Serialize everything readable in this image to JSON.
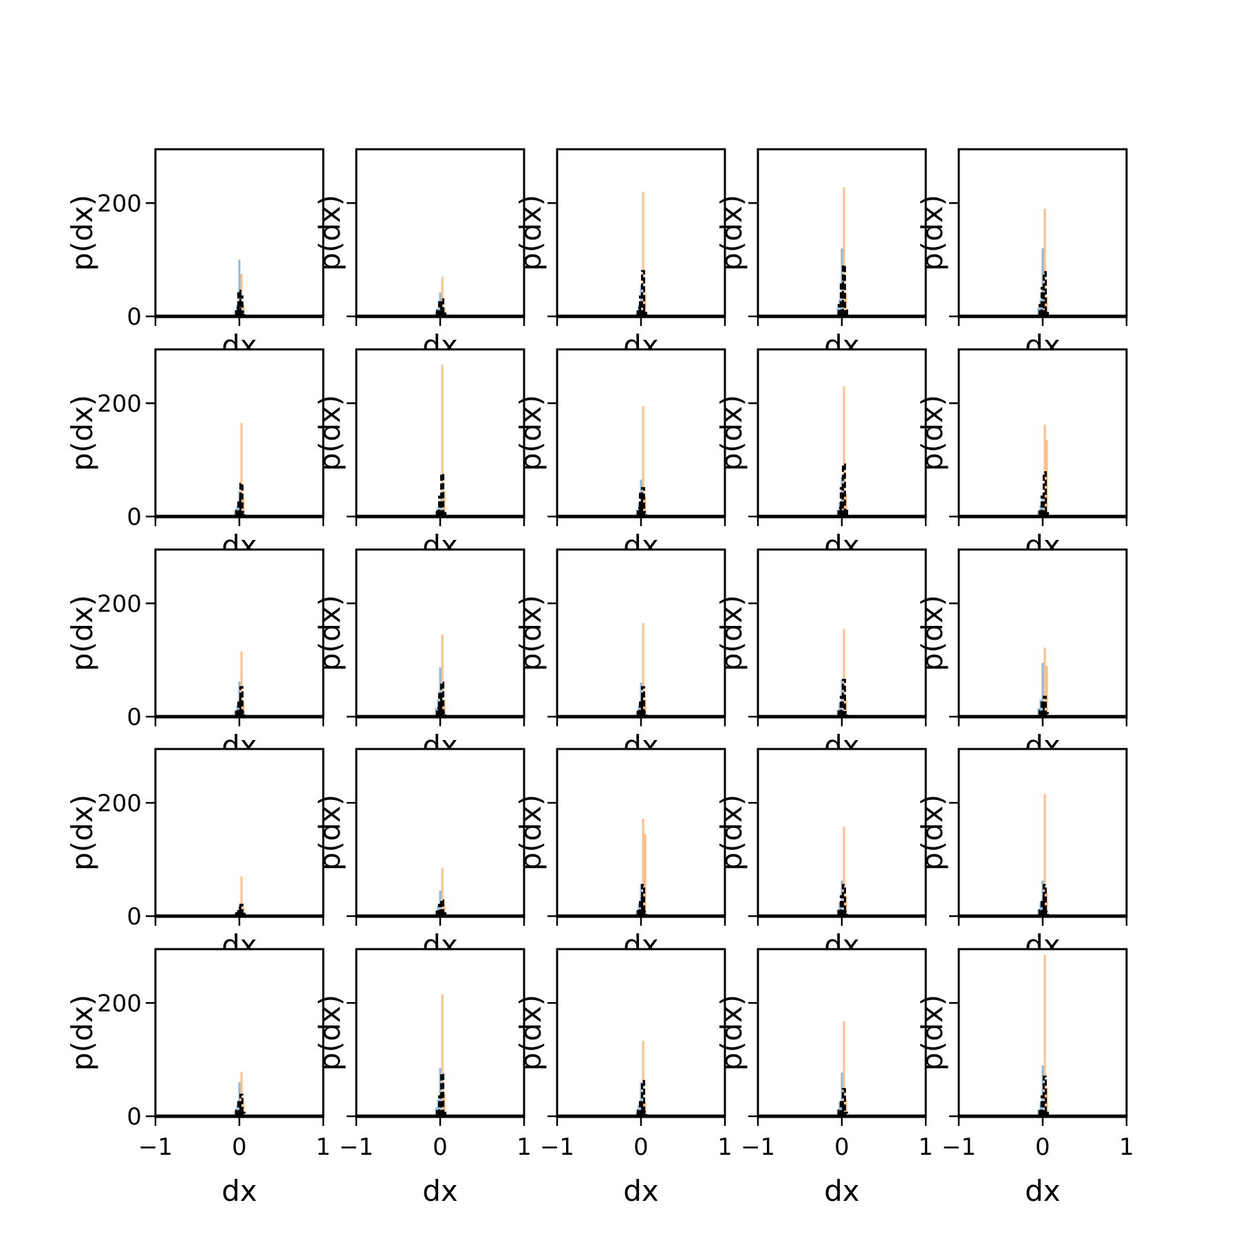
{
  "figure": {
    "background": "#ffffff",
    "rows": 5,
    "cols": 5
  },
  "colors": {
    "series_a": "#1f77b4",
    "series_b": "#ff7f0e",
    "series_c": "#000000",
    "axes": "#000000"
  },
  "chart_data": {
    "type": "bar",
    "title": "",
    "xlabel": "dx",
    "ylabel": "p(dx)",
    "xlim": [
      -1,
      1
    ],
    "ylim": [
      0,
      295
    ],
    "xticks": [
      -1,
      0,
      1
    ],
    "xtick_labels": [
      "−1",
      "0",
      "1"
    ],
    "yticks": [
      0,
      200
    ],
    "ytick_labels": [
      "0",
      "200"
    ],
    "grid": false,
    "legend": "none",
    "series_names": [
      "",
      "",
      ""
    ],
    "series_alpha": [
      0.5,
      0.5,
      1.0
    ],
    "bin_width": 0.025,
    "panels": [
      {
        "a": {
          "x": [
            -0.05,
            -0.025,
            0
          ],
          "y": [
            10,
            20,
            100
          ]
        },
        "b": {
          "x": [
            0.025,
            0.05
          ],
          "y": [
            75,
            20
          ]
        },
        "c": {
          "x": [
            -0.025,
            0,
            0.025,
            0.05
          ],
          "y": [
            15,
            45,
            35,
            8
          ]
        }
      },
      {
        "a": {
          "x": [
            -0.05,
            -0.025,
            0
          ],
          "y": [
            8,
            15,
            42
          ]
        },
        "b": {
          "x": [
            0.025,
            0.05
          ],
          "y": [
            70,
            15
          ]
        },
        "c": {
          "x": [
            -0.025,
            0,
            0.025,
            0.05
          ],
          "y": [
            10,
            25,
            30,
            5
          ]
        }
      },
      {
        "a": {
          "x": [
            -0.05,
            -0.025,
            0
          ],
          "y": [
            10,
            20,
            55
          ]
        },
        "b": {
          "x": [
            0.025,
            0.05
          ],
          "y": [
            220,
            40
          ]
        },
        "c": {
          "x": [
            -0.025,
            0,
            0.025,
            0.05
          ],
          "y": [
            15,
            35,
            80,
            10
          ]
        }
      },
      {
        "a": {
          "x": [
            -0.05,
            -0.025,
            0
          ],
          "y": [
            15,
            30,
            120
          ]
        },
        "b": {
          "x": [
            0.025,
            0.05
          ],
          "y": [
            228,
            40
          ]
        },
        "c": {
          "x": [
            -0.025,
            0,
            0.025,
            0.05
          ],
          "y": [
            20,
            60,
            90,
            12
          ]
        }
      },
      {
        "a": {
          "x": [
            -0.05,
            -0.025,
            0
          ],
          "y": [
            15,
            30,
            120
          ]
        },
        "b": {
          "x": [
            0.025,
            0.05
          ],
          "y": [
            190,
            35
          ]
        },
        "c": {
          "x": [
            -0.025,
            0,
            0.025,
            0.05
          ],
          "y": [
            20,
            50,
            78,
            10
          ]
        }
      },
      {
        "a": {
          "x": [
            -0.05,
            -0.025,
            0
          ],
          "y": [
            10,
            18,
            45
          ]
        },
        "b": {
          "x": [
            0.025,
            0.05
          ],
          "y": [
            165,
            30
          ]
        },
        "c": {
          "x": [
            -0.025,
            0,
            0.025,
            0.05
          ],
          "y": [
            10,
            30,
            58,
            8
          ]
        }
      },
      {
        "a": {
          "x": [
            -0.05,
            -0.025,
            0
          ],
          "y": [
            8,
            15,
            30
          ]
        },
        "b": {
          "x": [
            0.025,
            0.05
          ],
          "y": [
            268,
            45
          ]
        },
        "c": {
          "x": [
            -0.025,
            0,
            0.025,
            0.05
          ],
          "y": [
            12,
            35,
            75,
            10
          ]
        }
      },
      {
        "a": {
          "x": [
            -0.05,
            -0.025,
            0
          ],
          "y": [
            12,
            25,
            65
          ]
        },
        "b": {
          "x": [
            0.025,
            0.05
          ],
          "y": [
            195,
            35
          ]
        },
        "c": {
          "x": [
            -0.025,
            0,
            0.025,
            0.05
          ],
          "y": [
            15,
            40,
            50,
            8
          ]
        }
      },
      {
        "a": {
          "x": [
            -0.05,
            -0.025,
            0
          ],
          "y": [
            12,
            25,
            70
          ]
        },
        "b": {
          "x": [
            0.025,
            0.05
          ],
          "y": [
            230,
            40
          ]
        },
        "c": {
          "x": [
            -0.025,
            0,
            0.025,
            0.05
          ],
          "y": [
            15,
            50,
            92,
            12
          ]
        }
      },
      {
        "a": {
          "x": [
            -0.05,
            -0.025,
            0
          ],
          "y": [
            10,
            20,
            40
          ]
        },
        "b": {
          "x": [
            0.025,
            0.05
          ],
          "y": [
            162,
            135
          ]
        },
        "c": {
          "x": [
            -0.025,
            0,
            0.025,
            0.05
          ],
          "y": [
            12,
            35,
            78,
            10
          ]
        }
      },
      {
        "a": {
          "x": [
            -0.05,
            -0.025,
            0
          ],
          "y": [
            10,
            20,
            62
          ]
        },
        "b": {
          "x": [
            0.025,
            0.05
          ],
          "y": [
            115,
            25
          ]
        },
        "c": {
          "x": [
            -0.025,
            0,
            0.025,
            0.05
          ],
          "y": [
            12,
            30,
            52,
            8
          ]
        }
      },
      {
        "a": {
          "x": [
            -0.05,
            -0.025,
            0
          ],
          "y": [
            15,
            30,
            87
          ]
        },
        "b": {
          "x": [
            0.025,
            0.05
          ],
          "y": [
            145,
            30
          ]
        },
        "c": {
          "x": [
            -0.025,
            0,
            0.025,
            0.05
          ],
          "y": [
            15,
            40,
            60,
            8
          ]
        }
      },
      {
        "a": {
          "x": [
            -0.05,
            -0.025,
            0
          ],
          "y": [
            10,
            20,
            60
          ]
        },
        "b": {
          "x": [
            0.025,
            0.05
          ],
          "y": [
            165,
            30
          ]
        },
        "c": {
          "x": [
            -0.025,
            0,
            0.025,
            0.05
          ],
          "y": [
            12,
            30,
            52,
            8
          ]
        }
      },
      {
        "a": {
          "x": [
            -0.05,
            -0.025,
            0
          ],
          "y": [
            12,
            25,
            65
          ]
        },
        "b": {
          "x": [
            0.025,
            0.05
          ],
          "y": [
            155,
            30
          ]
        },
        "c": {
          "x": [
            -0.025,
            0,
            0.025,
            0.05
          ],
          "y": [
            12,
            35,
            65,
            8
          ]
        }
      },
      {
        "a": {
          "x": [
            -0.05,
            -0.025,
            0
          ],
          "y": [
            15,
            30,
            95
          ]
        },
        "b": {
          "x": [
            0.025,
            0.05
          ],
          "y": [
            122,
            90
          ]
        },
        "c": {
          "x": [
            -0.025,
            0,
            0.025,
            0.05
          ],
          "y": [
            10,
            25,
            35,
            6
          ]
        }
      },
      {
        "a": {
          "x": [
            -0.05,
            -0.025,
            0
          ],
          "y": [
            5,
            8,
            15
          ]
        },
        "b": {
          "x": [
            0.025,
            0.05
          ],
          "y": [
            70,
            15
          ]
        },
        "c": {
          "x": [
            -0.025,
            0,
            0.025,
            0.05
          ],
          "y": [
            5,
            15,
            20,
            4
          ]
        }
      },
      {
        "a": {
          "x": [
            -0.05,
            -0.025,
            0
          ],
          "y": [
            10,
            20,
            45
          ]
        },
        "b": {
          "x": [
            0.025,
            0.05
          ],
          "y": [
            85,
            20
          ]
        },
        "c": {
          "x": [
            -0.025,
            0,
            0.025,
            0.05
          ],
          "y": [
            8,
            20,
            28,
            5
          ]
        }
      },
      {
        "a": {
          "x": [
            -0.05,
            -0.025,
            0
          ],
          "y": [
            10,
            22,
            57
          ]
        },
        "b": {
          "x": [
            0.025,
            0.05
          ],
          "y": [
            172,
            145
          ]
        },
        "c": {
          "x": [
            -0.025,
            0,
            0.025,
            0.05
          ],
          "y": [
            12,
            30,
            55,
            8
          ]
        }
      },
      {
        "a": {
          "x": [
            -0.05,
            -0.025,
            0
          ],
          "y": [
            12,
            25,
            63
          ]
        },
        "b": {
          "x": [
            0.025,
            0.05
          ],
          "y": [
            158,
            35
          ]
        },
        "c": {
          "x": [
            -0.025,
            0,
            0.025,
            0.05
          ],
          "y": [
            12,
            35,
            55,
            8
          ]
        }
      },
      {
        "a": {
          "x": [
            -0.05,
            -0.025,
            0
          ],
          "y": [
            12,
            25,
            63
          ]
        },
        "b": {
          "x": [
            0.025,
            0.05
          ],
          "y": [
            215,
            40
          ]
        },
        "c": {
          "x": [
            -0.025,
            0,
            0.025,
            0.05
          ],
          "y": [
            10,
            30,
            55,
            8
          ]
        }
      },
      {
        "a": {
          "x": [
            -0.05,
            -0.025,
            0
          ],
          "y": [
            10,
            20,
            60
          ]
        },
        "b": {
          "x": [
            0.025,
            0.05
          ],
          "y": [
            78,
            20
          ]
        },
        "c": {
          "x": [
            -0.025,
            0,
            0.025,
            0.05
          ],
          "y": [
            10,
            25,
            38,
            6
          ]
        }
      },
      {
        "a": {
          "x": [
            -0.05,
            -0.025,
            0
          ],
          "y": [
            15,
            30,
            85
          ]
        },
        "b": {
          "x": [
            0.025,
            0.05
          ],
          "y": [
            215,
            40
          ]
        },
        "c": {
          "x": [
            -0.025,
            0,
            0.025,
            0.05
          ],
          "y": [
            12,
            35,
            75,
            10
          ]
        }
      },
      {
        "a": {
          "x": [
            -0.05,
            -0.025,
            0
          ],
          "y": [
            10,
            20,
            60
          ]
        },
        "b": {
          "x": [
            0.025,
            0.05
          ],
          "y": [
            133,
            25
          ]
        },
        "c": {
          "x": [
            -0.025,
            0,
            0.025,
            0.05
          ],
          "y": [
            10,
            25,
            62,
            8
          ]
        }
      },
      {
        "a": {
          "x": [
            -0.05,
            -0.025,
            0
          ],
          "y": [
            12,
            25,
            77
          ]
        },
        "b": {
          "x": [
            0.025,
            0.05
          ],
          "y": [
            168,
            30
          ]
        },
        "c": {
          "x": [
            -0.025,
            0,
            0.025,
            0.05
          ],
          "y": [
            10,
            25,
            48,
            6
          ]
        }
      },
      {
        "a": {
          "x": [
            -0.05,
            -0.025,
            0
          ],
          "y": [
            12,
            25,
            90
          ]
        },
        "b": {
          "x": [
            0.025,
            0.05
          ],
          "y": [
            285,
            50
          ]
        },
        "c": {
          "x": [
            -0.025,
            0,
            0.025,
            0.05
          ],
          "y": [
            12,
            35,
            70,
            10
          ]
        }
      }
    ]
  }
}
